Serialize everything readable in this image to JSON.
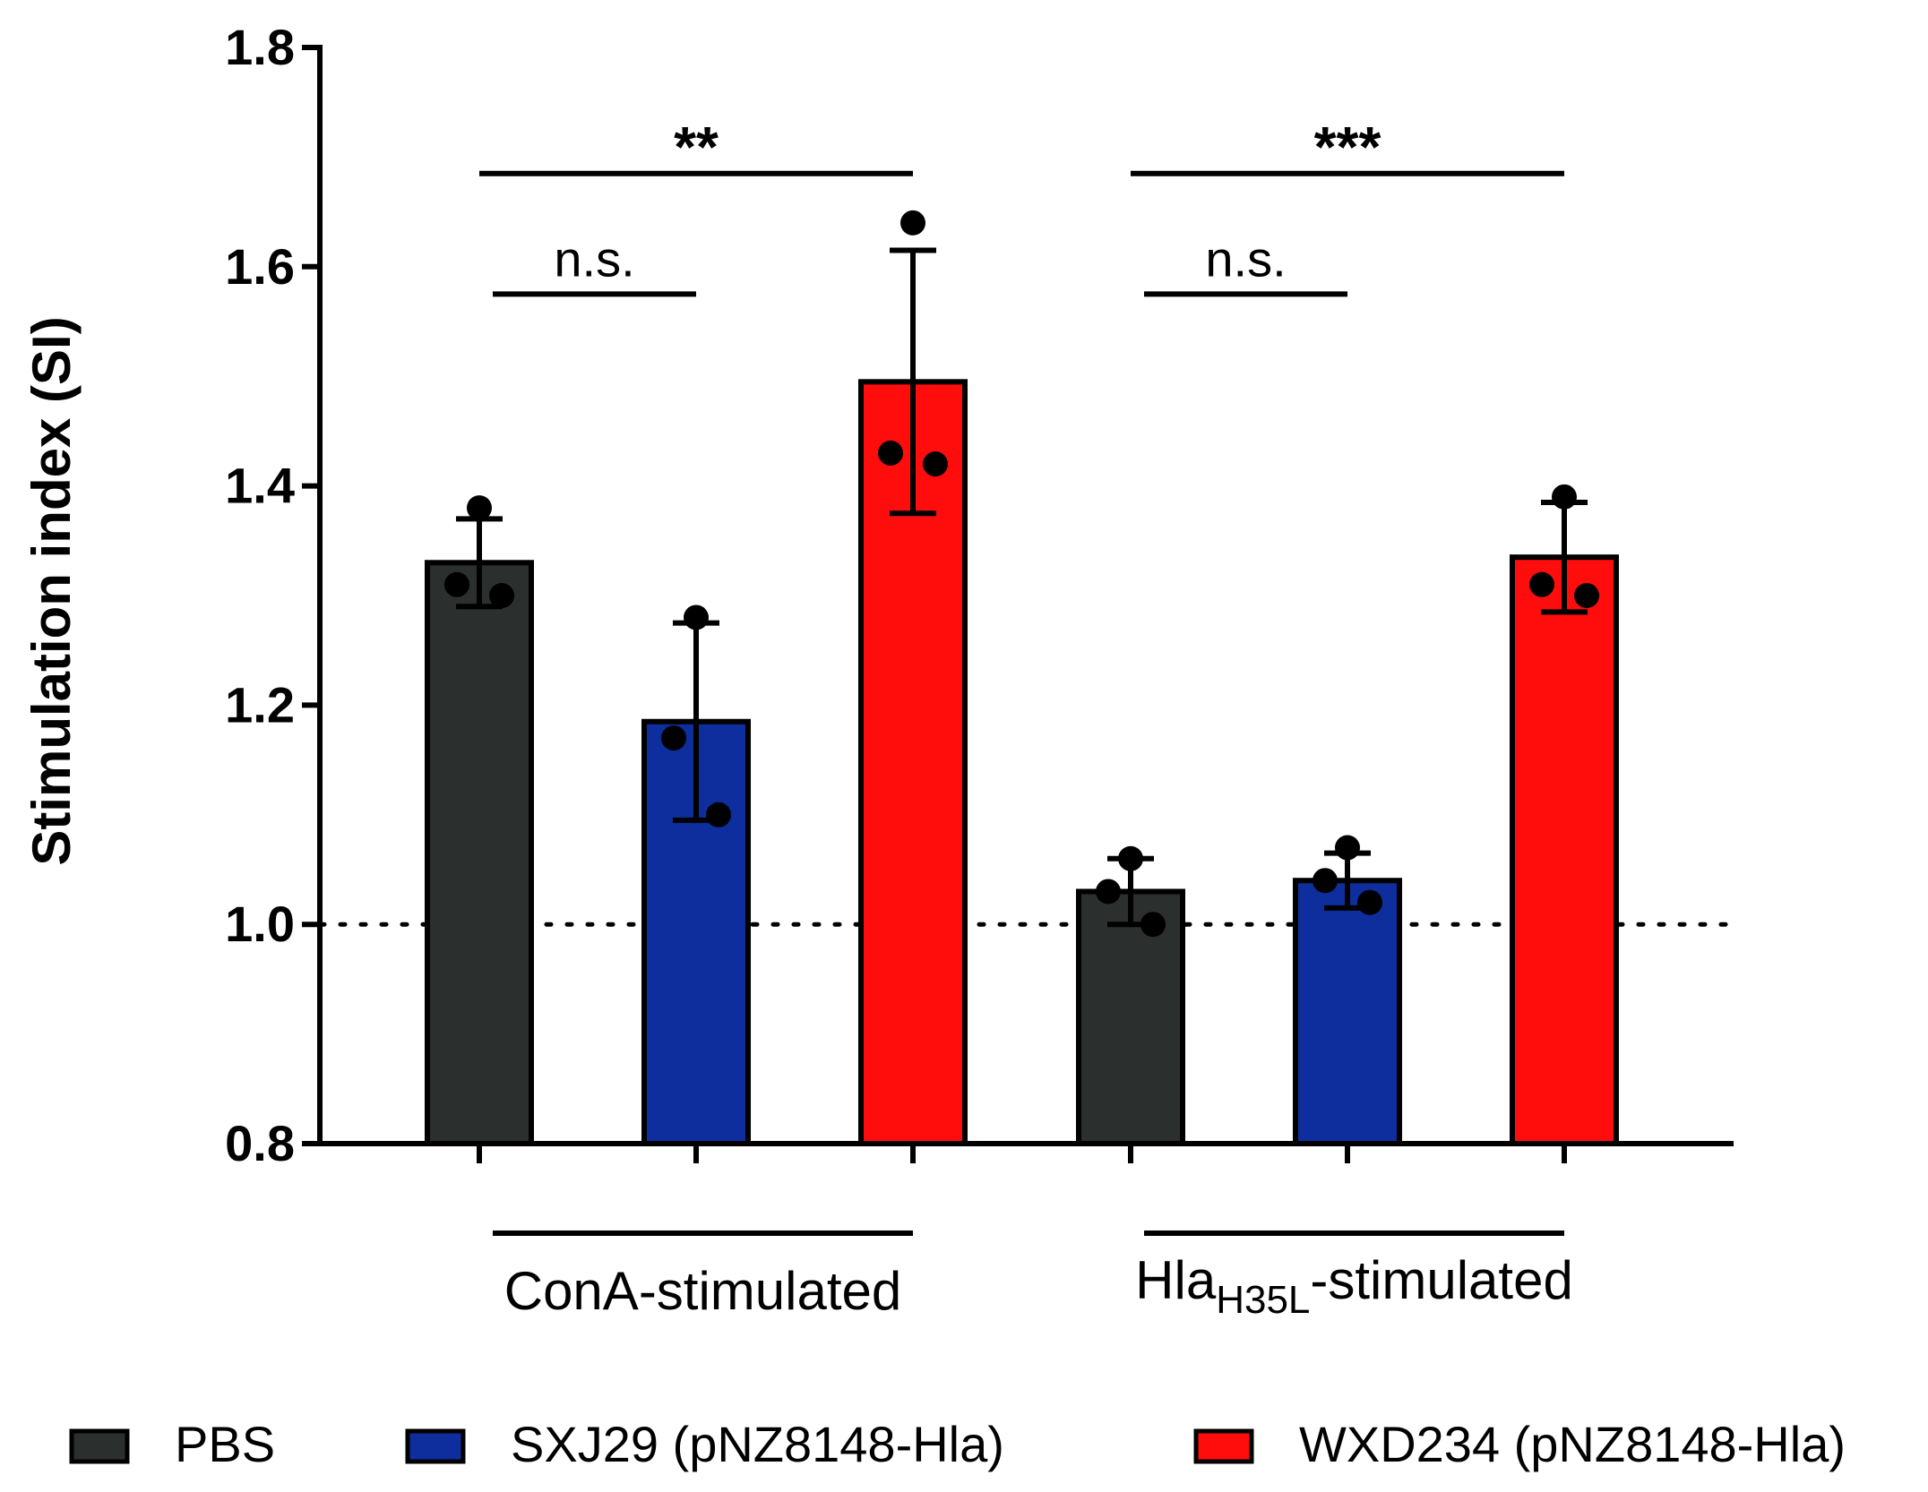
{
  "chart_data": {
    "type": "bar",
    "ylabel": "Stimulation index (SI)",
    "ylim": [
      0.8,
      1.8
    ],
    "yticks": [
      "0.8",
      "1.0",
      "1.2",
      "1.4",
      "1.6",
      "1.8"
    ],
    "reference_line": 1.0,
    "grid": false,
    "legend_position": "bottom",
    "groups": [
      {
        "label": "ConA-stimulated",
        "label_main": "ConA-stimulated",
        "label_sub": "",
        "label_suffix": ""
      },
      {
        "label": "HlaH35L-stimulated",
        "label_main": "Hla",
        "label_sub": "H35L",
        "label_suffix": "-stimulated"
      }
    ],
    "series": [
      {
        "name": "PBS",
        "color": "#2b2f2e",
        "values": [
          1.33,
          1.03
        ],
        "errors": [
          0.04,
          0.03
        ],
        "points": [
          [
            1.38,
            1.31,
            1.3
          ],
          [
            1.06,
            1.03,
            1.0
          ]
        ]
      },
      {
        "name": "SXJ29 (pNZ8148-Hla)",
        "color": "#0d2e9c",
        "values": [
          1.185,
          1.04
        ],
        "errors": [
          0.09,
          0.025
        ],
        "points": [
          [
            1.28,
            1.17,
            1.1
          ],
          [
            1.07,
            1.04,
            1.02
          ]
        ]
      },
      {
        "name": "WXD234 (pNZ8148-Hla)",
        "color": "#ff0d0d",
        "values": [
          1.495,
          1.335
        ],
        "errors": [
          0.12,
          0.05
        ],
        "points": [
          [
            1.64,
            1.43,
            1.42
          ],
          [
            1.39,
            1.31,
            1.3
          ]
        ]
      }
    ],
    "annotations": [
      {
        "text": "**",
        "group": 0,
        "from_series": 0,
        "to_series": 2,
        "y": 1.685
      },
      {
        "text": "n.s.",
        "group": 0,
        "from_series": 0,
        "to_series": 1,
        "y": 1.575
      },
      {
        "text": "***",
        "group": 1,
        "from_series": 0,
        "to_series": 2,
        "y": 1.685
      },
      {
        "text": "n.s.",
        "group": 1,
        "from_series": 0,
        "to_series": 1,
        "y": 1.575
      }
    ]
  }
}
